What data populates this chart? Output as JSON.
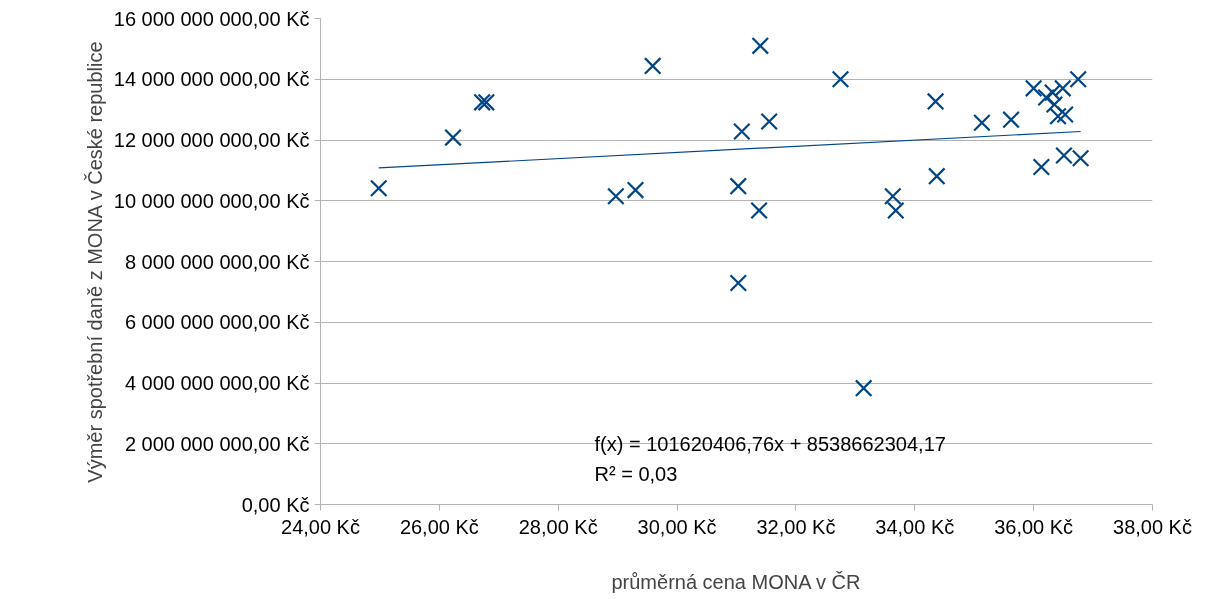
{
  "chart_data": {
    "type": "scatter",
    "xlabel": "průměrná cena MONA v ČR",
    "ylabel": "Výměr spotřební daně z MONA v České republice",
    "x": [
      24.98,
      26.23,
      26.72,
      26.79,
      28.97,
      29.3,
      29.59,
      31.03,
      31.03,
      31.09,
      31.38,
      31.4,
      31.55,
      32.75,
      33.14,
      33.63,
      33.68,
      34.35,
      34.37,
      35.13,
      35.62,
      36.0,
      36.21,
      36.32,
      36.49,
      36.75,
      36.41,
      36.53,
      36.35,
      36.13,
      36.51,
      36.79
    ],
    "series": [
      {
        "color": "#004586",
        "values": [
          10410000000,
          12080000000,
          13240000000,
          13240000000,
          10150000000,
          10350000000,
          14440000000,
          10480000000,
          7290000000,
          12280000000,
          9680000000,
          15100000000,
          12610000000,
          14000000000,
          3830000000,
          10150000000,
          9680000000,
          13270000000,
          10810000000,
          12570000000,
          12670000000,
          13700000000,
          13400000000,
          13560000000,
          13700000000,
          14000000000,
          12780000000,
          12840000000,
          13170000000,
          11110000000,
          11490000000,
          11400000000
        ]
      },
      {
        "type": "line",
        "marker": "none",
        "color": "#004586",
        "x": [
          24.98,
          36.79
        ],
        "values": [
          11080000000,
          12280000000
        ]
      }
    ],
    "marker": "cross",
    "xlim": [
      24,
      38
    ],
    "xticks": [
      {
        "value": 24,
        "label": "24,00 Kč"
      },
      {
        "value": 26,
        "label": "26,00 Kč"
      },
      {
        "value": 28,
        "label": "28,00 Kč"
      },
      {
        "value": 30,
        "label": "30,00 Kč"
      },
      {
        "value": 32,
        "label": "32,00 Kč"
      },
      {
        "value": 34,
        "label": "34,00 Kč"
      },
      {
        "value": 36,
        "label": "36,00 Kč"
      },
      {
        "value": 38,
        "label": "38,00 Kč"
      }
    ],
    "ylim": [
      0,
      16000000000
    ],
    "yticks": [
      {
        "value": 0,
        "label": "0,00 Kč"
      },
      {
        "value": 2000000000,
        "label": "2 000 000 000,00 Kč"
      },
      {
        "value": 4000000000,
        "label": "4 000 000 000,00 Kč"
      },
      {
        "value": 6000000000,
        "label": "6 000 000 000,00 Kč"
      },
      {
        "value": 8000000000,
        "label": "8 000 000 000,00 Kč"
      },
      {
        "value": 10000000000,
        "label": "10 000 000 000,00 Kč"
      },
      {
        "value": 12000000000,
        "label": "12 000 000 000,00 Kč"
      },
      {
        "value": 14000000000,
        "label": "14 000 000 000,00 Kč"
      },
      {
        "value": 16000000000,
        "label": "16 000 000 000,00 Kč"
      }
    ],
    "grid": "y",
    "annotations": [
      "f(x) = 101620406,76x + 8538662304,17",
      "R² = 0,03"
    ]
  }
}
